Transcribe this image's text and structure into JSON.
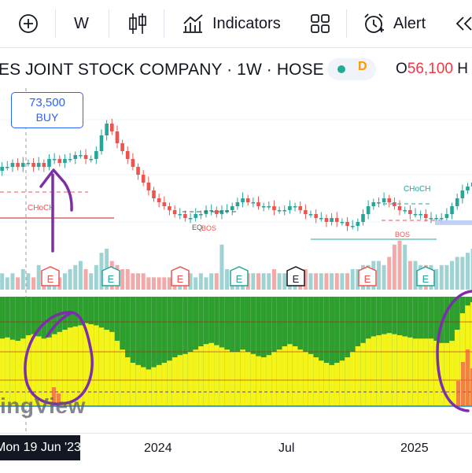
{
  "toolbar": {
    "interval": "W",
    "indicators_label": "Indicators",
    "alert_label": "Alert"
  },
  "header": {
    "title": "ES JOINT STOCK COMPANY · 1W · HOSE",
    "indicator_badge": "D",
    "ohlc_label": "O",
    "ohlc_value": "56,100",
    "ohlc_tail": "H"
  },
  "price_flag": {
    "price": "73,500",
    "side": "BUY"
  },
  "annotations": {
    "choch_left": "CHoCH",
    "choch_right": "CHoCH",
    "eq_label": "EQ",
    "bos_mid": "BOS",
    "bos_right": "BOS",
    "earnings_badge": "E"
  },
  "watermark": "ingView",
  "time_axis": {
    "cursor_date": "Mon 19 Jun '23",
    "labels": [
      "2024",
      "Jul",
      "2025"
    ]
  },
  "colors": {
    "up": "#26a69a",
    "down": "#ef5350",
    "vol_up": "#9fd3d3",
    "vol_down": "#f4a9a9",
    "osc_green": "#2e9e2e",
    "osc_yellow": "#f4f41a",
    "annotation": "#7b2fa8",
    "accent": "#2962ff"
  },
  "chart_data": {
    "type": "candlestick",
    "title": "ES JOINT STOCK COMPANY · 1W · HOSE",
    "x_labels": [
      "2024",
      "Jul",
      "2025"
    ],
    "cursor": "Mon 19 Jun '23",
    "highlight_price": 73500,
    "open_price": 56100,
    "close_series": [
      61,
      62,
      62,
      63,
      62,
      63,
      63,
      62,
      63,
      62,
      64,
      64,
      63,
      64,
      64,
      65,
      65,
      64,
      64,
      66,
      70,
      73,
      71,
      68,
      66,
      64,
      62,
      60,
      58,
      56,
      54,
      53,
      52,
      51,
      50,
      50,
      49,
      49,
      50,
      50,
      51,
      51,
      50,
      51,
      51,
      52,
      53,
      54,
      53,
      53,
      52,
      52,
      52,
      51,
      51,
      51,
      52,
      52,
      51,
      50,
      50,
      49,
      49,
      48,
      49,
      48,
      48,
      47,
      47,
      48,
      50,
      52,
      53,
      53,
      54,
      53,
      52,
      51,
      51,
      50,
      50,
      50,
      49,
      49,
      49,
      49,
      50,
      52,
      54,
      56,
      57,
      58,
      59
    ],
    "volume_series": [
      3,
      4,
      3,
      4,
      3,
      5,
      4,
      3,
      6,
      4,
      5,
      4,
      3,
      4,
      5,
      6,
      7,
      5,
      4,
      6,
      9,
      10,
      7,
      6,
      5,
      5,
      4,
      4,
      4,
      3,
      3,
      3,
      3,
      3,
      3,
      4,
      4,
      4,
      3,
      4,
      3,
      4,
      4,
      11,
      5,
      4,
      5,
      5,
      4,
      4,
      4,
      4,
      4,
      5,
      4,
      4,
      4,
      5,
      5,
      5,
      4,
      4,
      4,
      4,
      4,
      4,
      4,
      4,
      5,
      5,
      6,
      6,
      7,
      7,
      6,
      8,
      11,
      12,
      11,
      7,
      7,
      6,
      6,
      6,
      5,
      6,
      6,
      7,
      8,
      8,
      9,
      10,
      9
    ],
    "oscillator_yellow": [
      0.6,
      0.62,
      0.63,
      0.61,
      0.6,
      0.62,
      0.65,
      0.66,
      0.64,
      0.62,
      0.63,
      0.66,
      0.68,
      0.7,
      0.72,
      0.73,
      0.74,
      0.76,
      0.75,
      0.74,
      0.72,
      0.7,
      0.68,
      0.6,
      0.52,
      0.45,
      0.4,
      0.38,
      0.36,
      0.34,
      0.36,
      0.38,
      0.4,
      0.42,
      0.45,
      0.47,
      0.48,
      0.5,
      0.52,
      0.55,
      0.57,
      0.58,
      0.56,
      0.54,
      0.52,
      0.5,
      0.5,
      0.52,
      0.5,
      0.48,
      0.46,
      0.45,
      0.47,
      0.5,
      0.52,
      0.55,
      0.57,
      0.55,
      0.52,
      0.5,
      0.48,
      0.45,
      0.42,
      0.4,
      0.38,
      0.4,
      0.42,
      0.45,
      0.5,
      0.55,
      0.58,
      0.62,
      0.64,
      0.65,
      0.66,
      0.67,
      0.66,
      0.65,
      0.64,
      0.63,
      0.62,
      0.62,
      0.62,
      0.62,
      0.6,
      0.58,
      0.58,
      0.6,
      0.7,
      0.85,
      0.92,
      0.95,
      0.95
    ],
    "earnings_markers": [
      {
        "date": "2023 Q2",
        "type": "down"
      },
      {
        "date": "2023 Q3",
        "type": "up"
      },
      {
        "date": "2023 Q4",
        "type": "down"
      },
      {
        "date": "2024 Q1",
        "type": "up"
      },
      {
        "date": "2024 Q2",
        "type": "neutral"
      },
      {
        "date": "2024 Q3",
        "type": "down"
      },
      {
        "date": "2024 Q4",
        "type": "up"
      }
    ],
    "grid": true
  }
}
